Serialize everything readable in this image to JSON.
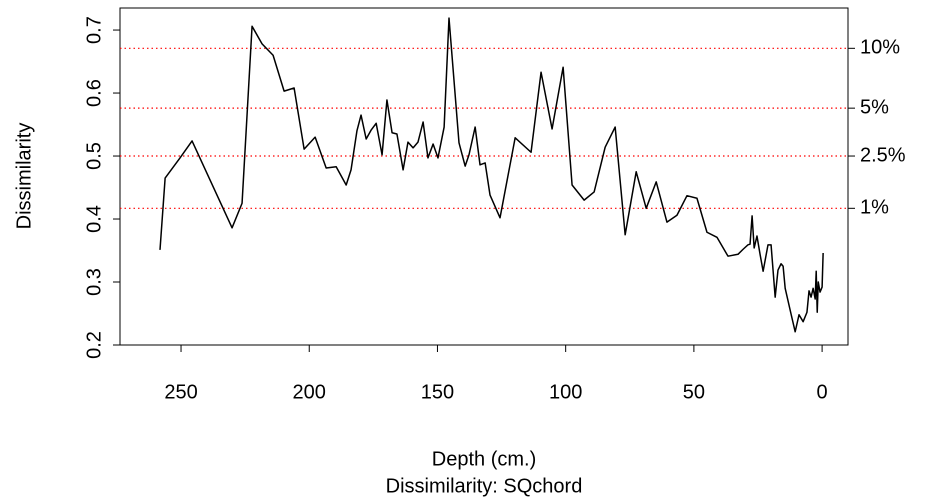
{
  "chart_data": {
    "type": "line",
    "x_label": "Depth (cm.)",
    "subtitle": "Dissimilarity: SQchord",
    "y_label": "Dissimilarity",
    "x": [
      258.2,
      256.2,
      250.4,
      245.7,
      230.1,
      226.2,
      222.3,
      218.4,
      214.1,
      209.8,
      205.9,
      202.0,
      197.7,
      193.4,
      189.5,
      185.6,
      183.7,
      181.4,
      179.8,
      177.8,
      175.9,
      173.9,
      171.6,
      169.7,
      167.7,
      165.8,
      163.4,
      161.5,
      159.5,
      157.6,
      155.6,
      153.7,
      151.7,
      149.8,
      147.4,
      145.5,
      141.6,
      139.2,
      137.7,
      135.3,
      133.4,
      131.4,
      129.5,
      125.6,
      119.7,
      113.5,
      109.6,
      105.3,
      101.0,
      97.5,
      92.8,
      88.9,
      84.6,
      80.7,
      76.8,
      72.5,
      68.6,
      64.7,
      60.5,
      56.6,
      52.7,
      48.8,
      44.9,
      41.0,
      36.7,
      32.8,
      30.8,
      28.9,
      28.1,
      27.3,
      26.5,
      25.4,
      24.2,
      23.0,
      21.1,
      19.9,
      18.3,
      17.2,
      16.0,
      15.2,
      14.4,
      12.1,
      10.5,
      9.0,
      7.4,
      5.9,
      5.1,
      4.3,
      3.5,
      2.7,
      2.3,
      1.9,
      1.5,
      0.8,
      0.0,
      -0.4
    ],
    "series": [
      {
        "color": "#000000",
        "values": [
          0.351,
          0.465,
          0.497,
          0.524,
          0.386,
          0.425,
          0.706,
          0.678,
          0.66,
          0.603,
          0.608,
          0.511,
          0.53,
          0.481,
          0.483,
          0.454,
          0.478,
          0.54,
          0.565,
          0.527,
          0.541,
          0.552,
          0.502,
          0.589,
          0.537,
          0.535,
          0.478,
          0.522,
          0.513,
          0.522,
          0.554,
          0.497,
          0.519,
          0.497,
          0.546,
          0.719,
          0.521,
          0.484,
          0.502,
          0.546,
          0.486,
          0.489,
          0.438,
          0.402,
          0.529,
          0.506,
          0.633,
          0.543,
          0.641,
          0.454,
          0.43,
          0.443,
          0.514,
          0.546,
          0.375,
          0.475,
          0.417,
          0.459,
          0.395,
          0.406,
          0.437,
          0.433,
          0.379,
          0.371,
          0.341,
          0.344,
          0.352,
          0.359,
          0.36,
          0.405,
          0.354,
          0.373,
          0.344,
          0.317,
          0.359,
          0.359,
          0.276,
          0.319,
          0.329,
          0.325,
          0.29,
          0.249,
          0.221,
          0.248,
          0.237,
          0.252,
          0.286,
          0.276,
          0.29,
          0.273,
          0.317,
          0.252,
          0.3,
          0.284,
          0.292,
          0.346
        ]
      }
    ],
    "xlim": [
      273.8,
      -10.1
    ],
    "xticks": [
      250,
      200,
      150,
      100,
      50,
      0
    ],
    "ylim": [
      0.2,
      0.735
    ],
    "yticks": [
      0.2,
      0.3,
      0.4,
      0.5,
      0.6,
      0.7
    ],
    "reference_color": "#ff0000",
    "reference_lines": [
      {
        "value": 0.671,
        "label": "10%"
      },
      {
        "value": 0.576,
        "label": "5%"
      },
      {
        "value": 0.5,
        "label": "2.5%"
      },
      {
        "value": 0.417,
        "label": "1%"
      }
    ]
  }
}
